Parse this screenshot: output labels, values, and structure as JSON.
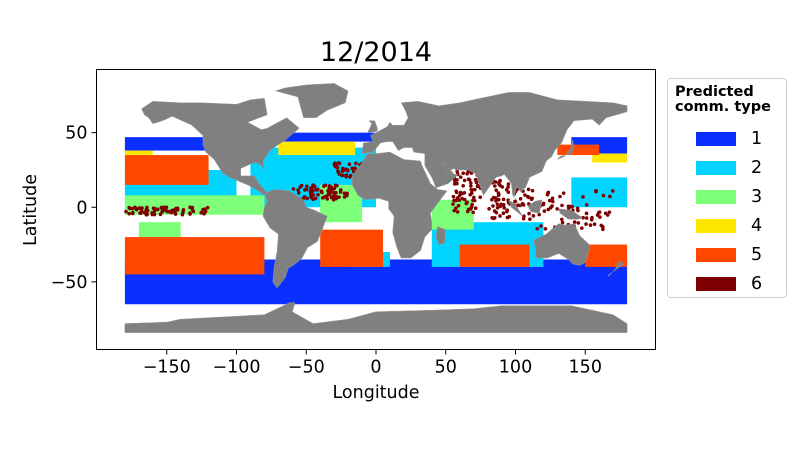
{
  "chart_data": {
    "type": "scatter",
    "title": "12/2014",
    "xlabel": "Longitude",
    "ylabel": "Latitude",
    "xlim": [
      -200,
      200
    ],
    "ylim": [
      -95,
      92
    ],
    "xticks": [
      -150,
      -100,
      -50,
      0,
      50,
      100,
      150
    ],
    "xtick_labels": [
      "−150",
      "−100",
      "−50",
      "0",
      "50",
      "100",
      "150"
    ],
    "yticks": [
      -50,
      0,
      50
    ],
    "ytick_labels": [
      "−50",
      "0",
      "50"
    ],
    "grid": false,
    "background": "land shown in gray, ocean shown in white",
    "legend": {
      "title": "Predicted\ncomm. type",
      "placement": "right, outside axes",
      "entries": [
        {
          "label": "1",
          "color": "#0a2fff"
        },
        {
          "label": "2",
          "color": "#00d4ff"
        },
        {
          "label": "3",
          "color": "#7dff7a"
        },
        {
          "label": "4",
          "color": "#ffe600"
        },
        {
          "label": "5",
          "color": "#ff4700"
        },
        {
          "label": "6",
          "color": "#7f0000"
        }
      ]
    },
    "regions": [
      {
        "type": 1,
        "lon": [
          -180,
          180
        ],
        "lat": [
          -65,
          -35
        ]
      },
      {
        "type": 1,
        "lon": [
          -180,
          -100
        ],
        "lat": [
          38,
          47
        ]
      },
      {
        "type": 1,
        "lon": [
          140,
          180
        ],
        "lat": [
          36,
          47
        ]
      },
      {
        "type": 1,
        "lon": [
          -70,
          40
        ],
        "lat": [
          44,
          50
        ]
      },
      {
        "type": 2,
        "lon": [
          -180,
          -100
        ],
        "lat": [
          5,
          25
        ]
      },
      {
        "type": 2,
        "lon": [
          -90,
          0
        ],
        "lat": [
          0,
          40
        ]
      },
      {
        "type": 2,
        "lon": [
          140,
          180
        ],
        "lat": [
          0,
          20
        ]
      },
      {
        "type": 2,
        "lon": [
          -20,
          10
        ],
        "lat": [
          -40,
          -30
        ]
      },
      {
        "type": 2,
        "lon": [
          40,
          120
        ],
        "lat": [
          -40,
          -10
        ]
      },
      {
        "type": 3,
        "lon": [
          -180,
          -80
        ],
        "lat": [
          -5,
          8
        ]
      },
      {
        "type": 3,
        "lon": [
          -40,
          -10
        ],
        "lat": [
          -10,
          15
        ]
      },
      {
        "type": 3,
        "lon": [
          40,
          70
        ],
        "lat": [
          -15,
          5
        ]
      },
      {
        "type": 3,
        "lon": [
          -170,
          -140
        ],
        "lat": [
          -25,
          -10
        ]
      },
      {
        "type": 4,
        "lon": [
          -70,
          -15
        ],
        "lat": [
          35,
          44
        ]
      },
      {
        "type": 4,
        "lon": [
          155,
          180
        ],
        "lat": [
          30,
          36
        ]
      },
      {
        "type": 4,
        "lon": [
          -180,
          -160
        ],
        "lat": [
          34,
          38
        ]
      },
      {
        "type": 5,
        "lon": [
          -180,
          -80
        ],
        "lat": [
          -45,
          -20
        ]
      },
      {
        "type": 5,
        "lon": [
          -180,
          -120
        ],
        "lat": [
          15,
          35
        ]
      },
      {
        "type": 5,
        "lon": [
          -40,
          5
        ],
        "lat": [
          -40,
          -15
        ]
      },
      {
        "type": 5,
        "lon": [
          60,
          110
        ],
        "lat": [
          -40,
          -25
        ]
      },
      {
        "type": 5,
        "lon": [
          150,
          180
        ],
        "lat": [
          -40,
          -25
        ]
      },
      {
        "type": 5,
        "lon": [
          130,
          160
        ],
        "lat": [
          35,
          42
        ]
      },
      {
        "type": 6,
        "lon": [
          55,
          75
        ],
        "lat": [
          -5,
          25
        ]
      },
      {
        "type": 6,
        "lon": [
          80,
          110
        ],
        "lat": [
          -8,
          18
        ]
      },
      {
        "type": 6,
        "lon": [
          -60,
          -20
        ],
        "lat": [
          5,
          15
        ]
      },
      {
        "type": 6,
        "lon": [
          -180,
          -120
        ],
        "lat": [
          -5,
          0
        ]
      },
      {
        "type": 6,
        "lon": [
          110,
          170
        ],
        "lat": [
          -15,
          12
        ]
      },
      {
        "type": 6,
        "lon": [
          -30,
          0
        ],
        "lat": [
          20,
          30
        ]
      }
    ]
  }
}
